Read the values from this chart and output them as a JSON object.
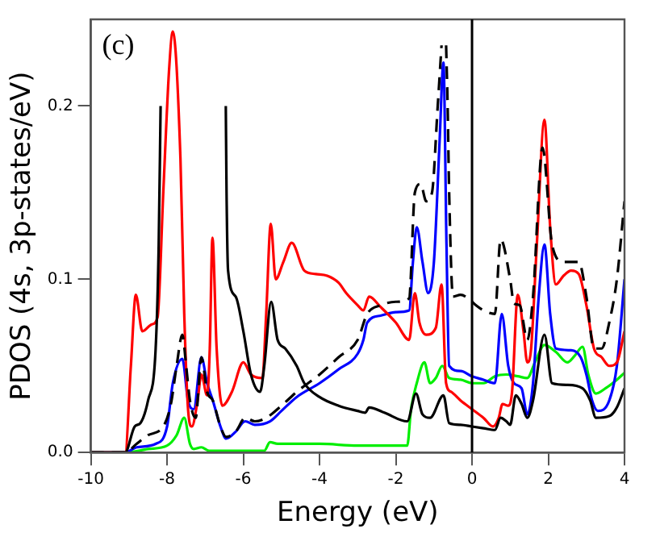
{
  "chart_data": {
    "type": "line",
    "xlabel": "Energy (eV)",
    "ylabel": "PDOS (4s, 3p-states/eV)",
    "annotations": [
      "(c)"
    ],
    "xlim": [
      -10,
      4
    ],
    "xticks": [
      -10,
      -8,
      -6,
      -4,
      -2,
      0,
      2,
      4
    ],
    "ylim": [
      0,
      0.25
    ],
    "yticks": [
      {
        "value": 0,
        "label": "0.0"
      },
      {
        "value": 0.1,
        "label": "0.1"
      },
      {
        "value": 0.2,
        "label": "0.2"
      }
    ],
    "grid": false,
    "legend": false,
    "marker": "none",
    "ref_lines": [
      {
        "axis": "x",
        "value": 0,
        "color": "#000000"
      }
    ],
    "series": [
      {
        "color": "#000000",
        "line_style": "solid",
        "x": [
          -10,
          -9.1,
          -8.85,
          -8.7,
          -8.5,
          -8.3,
          -8.22,
          -8.17,
          -8.13,
          -7.3,
          -6.47,
          -6.46,
          -6.44,
          -6.4,
          -6.2,
          -6.0,
          -5.8,
          -5.56,
          -5.45,
          -5.27,
          -5.1,
          -4.9,
          -4.6,
          -4.4,
          -4.0,
          -3.5,
          -3.0,
          -2.8,
          -2.7,
          -2.3,
          -1.7,
          -1.47,
          -1.3,
          -1.1,
          -0.75,
          -0.6,
          -0.3,
          0,
          0.3,
          0.6,
          0.75,
          0.9,
          1.0,
          1.15,
          1.3,
          1.45,
          1.6,
          1.9,
          2.1,
          2.5,
          2.9,
          3.1,
          3.25,
          3.6,
          3.8,
          4
        ],
        "values": [
          0,
          0,
          0.015,
          0.017,
          0.03,
          0.06,
          0.12,
          0.2,
          null,
          null,
          null,
          0.2,
          0.15,
          0.105,
          0.09,
          0.07,
          0.045,
          0.035,
          0.05,
          0.087,
          0.065,
          0.06,
          0.05,
          0.04,
          0.032,
          0.027,
          0.024,
          0.023,
          0.026,
          0.023,
          0.018,
          0.034,
          0.022,
          0.02,
          0.033,
          0.017,
          0.016,
          0.015,
          0.014,
          0.013,
          0.02,
          0.018,
          0.016,
          0.033,
          0.028,
          0.02,
          0.03,
          0.068,
          0.04,
          0.039,
          0.037,
          0.03,
          0.02,
          0.021,
          0.026,
          0.037
        ]
      },
      {
        "color": "#000000",
        "line_style": "dashed",
        "x": [
          -10,
          -9.1,
          -8.8,
          -8.5,
          -8.1,
          -7.9,
          -7.75,
          -7.6,
          -7.5,
          -7.4,
          -7.25,
          -7.1,
          -6.95,
          -6.8,
          -6.6,
          -6.45,
          -6.2,
          -5.95,
          -5.7,
          -5.4,
          -5.0,
          -4.6,
          -4.0,
          -3.5,
          -3.0,
          -2.75,
          -2.4,
          -2.0,
          -1.65,
          -1.5,
          -1.35,
          -1.2,
          -1.05,
          -0.9,
          -0.8,
          -0.72,
          -0.68,
          -0.64,
          -0.6,
          -0.5,
          -0.3,
          -0.1,
          0.1,
          0.3,
          0.6,
          0.75,
          1.0,
          1.1,
          1.25,
          1.45,
          1.6,
          1.85,
          2.1,
          2.4,
          2.8,
          3.0,
          3.2,
          3.4,
          3.6,
          3.8,
          4
        ],
        "values": [
          0,
          0,
          0.005,
          0.01,
          0.015,
          0.028,
          0.05,
          0.068,
          0.05,
          0.03,
          0.02,
          0.055,
          0.035,
          0.03,
          0.015,
          0.009,
          0.012,
          0.02,
          0.018,
          0.02,
          0.027,
          0.035,
          0.045,
          0.055,
          0.065,
          0.08,
          0.085,
          0.087,
          0.089,
          0.15,
          0.155,
          0.145,
          0.15,
          0.2,
          0.235,
          null,
          0.235,
          0.2,
          0.15,
          0.09,
          0.091,
          0.089,
          0.085,
          0.082,
          0.08,
          0.123,
          0.1,
          0.086,
          0.085,
          0.065,
          0.09,
          0.176,
          0.12,
          0.11,
          0.11,
          0.09,
          0.06,
          0.06,
          0.075,
          0.1,
          0.145
        ]
      },
      {
        "color": "#ff0000",
        "line_style": "solid",
        "x": [
          -10,
          -9.1,
          -8.95,
          -8.82,
          -8.65,
          -8.4,
          -8.25,
          -8.1,
          -7.95,
          -7.85,
          -7.65,
          -7.55,
          -7.45,
          -7.35,
          -7.2,
          -7.1,
          -6.95,
          -6.88,
          -6.81,
          -6.7,
          -6.55,
          -6.3,
          -6.0,
          -5.8,
          -5.5,
          -5.4,
          -5.28,
          -5.15,
          -4.95,
          -4.73,
          -4.4,
          -4.1,
          -3.8,
          -3.5,
          -3.3,
          -3.0,
          -2.85,
          -2.7,
          -2.4,
          -2.0,
          -1.65,
          -1.5,
          -1.38,
          -1.2,
          -0.95,
          -0.8,
          -0.68,
          -0.55,
          -0.3,
          0,
          0.3,
          0.55,
          0.7,
          0.8,
          0.95,
          1.05,
          1.2,
          1.35,
          1.45,
          1.55,
          1.7,
          1.9,
          2.05,
          2.2,
          2.4,
          2.6,
          2.8,
          3.0,
          3.2,
          3.4,
          3.6,
          3.8,
          4
        ],
        "values": [
          0,
          0,
          0.05,
          0.091,
          0.07,
          0.074,
          0.078,
          0.15,
          0.22,
          0.243,
          0.17,
          0.08,
          0.025,
          0.015,
          0.03,
          0.045,
          0.033,
          0.06,
          0.124,
          0.06,
          0.027,
          0.035,
          0.052,
          0.045,
          0.043,
          0.08,
          0.132,
          0.1,
          0.11,
          0.121,
          0.105,
          0.103,
          0.102,
          0.098,
          0.092,
          0.085,
          0.082,
          0.09,
          0.084,
          0.075,
          0.065,
          0.092,
          0.075,
          0.068,
          0.072,
          0.097,
          0.04,
          0.035,
          0.03,
          0.025,
          0.02,
          0.015,
          0.02,
          0.028,
          0.027,
          0.035,
          0.091,
          0.07,
          0.052,
          0.06,
          0.12,
          0.192,
          0.13,
          0.097,
          0.102,
          0.105,
          0.103,
          0.085,
          0.06,
          0.055,
          0.05,
          0.052,
          0.07
        ]
      },
      {
        "color": "#0000ff",
        "line_style": "solid",
        "x": [
          -10,
          -9.1,
          -8.8,
          -8.3,
          -8.0,
          -7.85,
          -7.6,
          -7.45,
          -7.3,
          -7.1,
          -6.95,
          -6.8,
          -6.6,
          -6.45,
          -6.2,
          -5.95,
          -5.7,
          -5.3,
          -5.0,
          -4.6,
          -4.0,
          -3.5,
          -3.0,
          -2.85,
          -2.75,
          -2.4,
          -2.0,
          -1.65,
          -1.55,
          -1.45,
          -1.3,
          -1.15,
          -1.0,
          -0.85,
          -0.75,
          -0.67,
          -0.6,
          -0.3,
          0,
          0.3,
          0.6,
          0.78,
          0.95,
          1.1,
          1.3,
          1.45,
          1.6,
          1.75,
          1.9,
          2.05,
          2.2,
          2.6,
          2.85,
          3.0,
          3.15,
          3.3,
          3.6,
          3.8,
          4
        ],
        "values": [
          0,
          0,
          0.003,
          0.005,
          0.015,
          0.04,
          0.054,
          0.03,
          0.025,
          0.055,
          0.04,
          0.03,
          0.015,
          0.008,
          0.012,
          0.018,
          0.016,
          0.018,
          0.024,
          0.032,
          0.04,
          0.048,
          0.057,
          0.065,
          0.075,
          0.079,
          0.081,
          0.082,
          0.11,
          0.13,
          0.11,
          0.092,
          0.11,
          0.18,
          0.225,
          0.12,
          0.05,
          0.047,
          0.044,
          0.042,
          0.04,
          0.08,
          0.05,
          0.04,
          0.037,
          0.022,
          0.04,
          0.09,
          0.12,
          0.08,
          0.06,
          0.059,
          0.055,
          0.045,
          0.03,
          0.024,
          0.03,
          0.05,
          0.1
        ]
      },
      {
        "color": "#00ee00",
        "line_style": "solid",
        "x": [
          -10,
          -9.1,
          -8.5,
          -8.0,
          -7.75,
          -7.55,
          -7.4,
          -7.3,
          -7.1,
          -6.9,
          -6.0,
          -5.45,
          -5.3,
          -5.1,
          -4.0,
          -3.0,
          -1.7,
          -1.6,
          -1.45,
          -1.25,
          -1.1,
          -0.95,
          -0.78,
          -0.6,
          -0.3,
          0,
          0.3,
          0.6,
          0.9,
          1.2,
          1.45,
          1.65,
          1.9,
          2.2,
          2.5,
          2.7,
          2.9,
          3.05,
          3.25,
          3.5,
          3.8,
          4
        ],
        "values": [
          0,
          0,
          0.002,
          0.004,
          0.01,
          0.02,
          0.005,
          0.002,
          0.003,
          0.001,
          0.001,
          0.001,
          0.006,
          0.005,
          0.005,
          0.004,
          0.004,
          0.025,
          0.04,
          0.052,
          0.04,
          0.043,
          0.05,
          0.043,
          0.042,
          0.04,
          0.04,
          0.044,
          0.045,
          0.044,
          0.043,
          0.052,
          0.062,
          0.058,
          0.052,
          0.056,
          0.061,
          0.045,
          0.034,
          0.037,
          0.042,
          0.046
        ]
      }
    ]
  }
}
